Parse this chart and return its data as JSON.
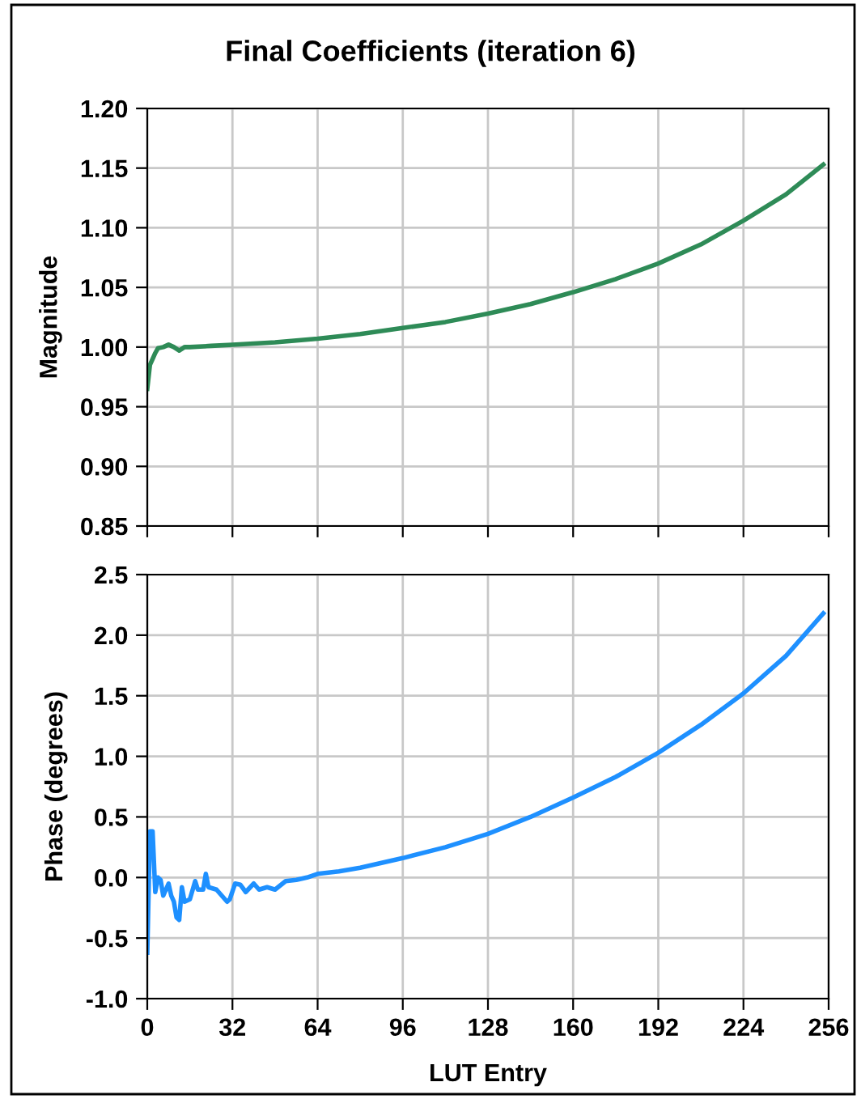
{
  "chart_data": [
    {
      "type": "line",
      "title": "Final Coefficients (iteration 6)",
      "ylabel": "Magnitude",
      "tick_labels": "y",
      "grid": true,
      "xlim": [
        0,
        256
      ],
      "xticks": [
        0,
        32,
        64,
        96,
        128,
        160,
        192,
        224,
        256
      ],
      "ylim": [
        0.85,
        1.2
      ],
      "yticks": [
        {
          "value": 0.85,
          "label": "0.85"
        },
        {
          "value": 0.9,
          "label": "0.90"
        },
        {
          "value": 0.95,
          "label": "0.95"
        },
        {
          "value": 1.0,
          "label": "1.00"
        },
        {
          "value": 1.05,
          "label": "1.05"
        },
        {
          "value": 1.1,
          "label": "1.10"
        },
        {
          "value": 1.15,
          "label": "1.15"
        },
        {
          "value": 1.2,
          "label": "1.20"
        }
      ],
      "series": [
        {
          "color": "#2e8b57",
          "x": [
            0,
            1,
            2,
            3,
            4,
            6,
            8,
            10,
            12,
            14,
            16,
            24,
            32,
            48,
            64,
            80,
            96,
            112,
            128,
            144,
            160,
            176,
            192,
            208,
            224,
            240,
            254
          ],
          "values": [
            0.965,
            0.985,
            0.99,
            0.995,
            0.999,
            1.0,
            1.002,
            1.0,
            0.997,
            1.0,
            1.0,
            1.001,
            1.002,
            1.004,
            1.007,
            1.011,
            1.016,
            1.021,
            1.028,
            1.036,
            1.046,
            1.057,
            1.07,
            1.086,
            1.106,
            1.128,
            1.153
          ]
        }
      ]
    },
    {
      "type": "line",
      "xlabel": "LUT Entry",
      "ylabel": "Phase (degrees)",
      "grid": true,
      "xlim": [
        0,
        256
      ],
      "xticks": [
        0,
        32,
        64,
        96,
        128,
        160,
        192,
        224,
        256
      ],
      "ylim": [
        -1.0,
        2.5
      ],
      "yticks": [
        {
          "value": -1.0,
          "label": "-1.0"
        },
        {
          "value": -0.5,
          "label": "-0.5"
        },
        {
          "value": 0.0,
          "label": "0.0"
        },
        {
          "value": 0.5,
          "label": "0.5"
        },
        {
          "value": 1.0,
          "label": "1.0"
        },
        {
          "value": 1.5,
          "label": "1.5"
        },
        {
          "value": 2.0,
          "label": "2.0"
        },
        {
          "value": 2.5,
          "label": "2.5"
        }
      ],
      "series": [
        {
          "color": "#1e90ff",
          "x": [
            0,
            1,
            2,
            3,
            4,
            5,
            6,
            8,
            9,
            10,
            11,
            12,
            13,
            14,
            16,
            18,
            19,
            21,
            22,
            23,
            26,
            28,
            30,
            31,
            33,
            35,
            37,
            40,
            42,
            45,
            48,
            52,
            56,
            60,
            64,
            72,
            80,
            96,
            112,
            128,
            144,
            160,
            176,
            192,
            208,
            224,
            240,
            254
          ],
          "values": [
            -0.62,
            0.38,
            0.38,
            -0.12,
            0.0,
            -0.02,
            -0.15,
            -0.05,
            -0.15,
            -0.2,
            -0.33,
            -0.35,
            -0.08,
            -0.2,
            -0.18,
            -0.03,
            -0.1,
            -0.1,
            0.03,
            -0.08,
            -0.1,
            -0.15,
            -0.2,
            -0.18,
            -0.05,
            -0.06,
            -0.12,
            -0.05,
            -0.1,
            -0.08,
            -0.1,
            -0.03,
            -0.02,
            0.0,
            0.03,
            0.05,
            0.08,
            0.16,
            0.25,
            0.36,
            0.5,
            0.66,
            0.83,
            1.03,
            1.26,
            1.52,
            1.83,
            2.18
          ]
        }
      ]
    }
  ]
}
